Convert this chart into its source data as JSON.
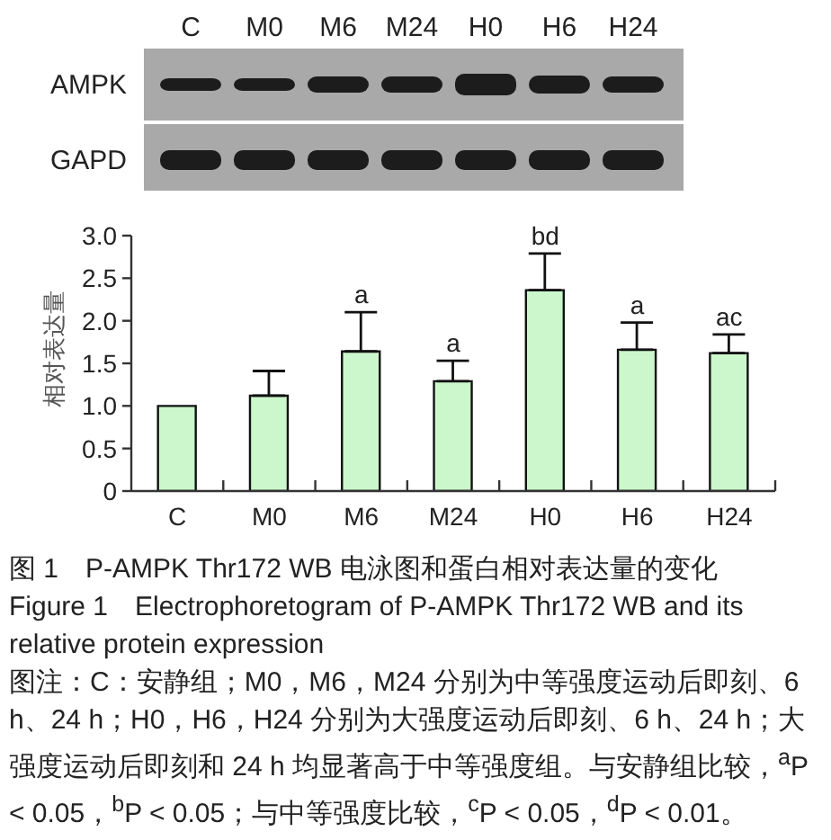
{
  "chart_data": {
    "type": "bar",
    "title": "图 1　P-AMPK Thr172 WB 电泳图和蛋白相对表达量的变化",
    "subtitle": "Figure 1　Electrophoretogram of P-AMPK Thr172 WB and its relative protein expression",
    "ylabel": "相对表达量",
    "categories": [
      "C",
      "M0",
      "M6",
      "M24",
      "H0",
      "H6",
      "H24"
    ],
    "values": [
      1.0,
      1.12,
      1.64,
      1.29,
      2.36,
      1.66,
      1.62
    ],
    "errors": [
      null,
      [
        1.12,
        1.41
      ],
      [
        1.64,
        2.1
      ],
      [
        1.29,
        1.53
      ],
      [
        2.36,
        2.79
      ],
      [
        1.66,
        1.98
      ],
      [
        1.62,
        1.84
      ]
    ],
    "color": "#ccf7cc",
    "ylim": [
      0,
      3
    ],
    "yticks": [
      0,
      0.5,
      {
        "value": 1,
        "label": "1.0"
      },
      1.5,
      {
        "value": 2,
        "label": "2.0"
      },
      2.5,
      {
        "value": 3,
        "label": "3.0"
      }
    ],
    "annotations": [
      "AMPK",
      "GAPD",
      {
        "text": "a",
        "x": "M6",
        "y": 2.1
      },
      {
        "text": "a",
        "x": "M24",
        "y": 1.53
      },
      {
        "text": "bd",
        "x": "H0",
        "y": 2.79
      },
      {
        "text": "a",
        "x": "H6",
        "y": 1.98
      },
      {
        "text": "ac",
        "x": "H24",
        "y": 1.84
      },
      "图注：C：安静组；M0，M6，M24 分别为中等强度运动后即刻、6 h、24 h；H0，H6，H24 分别为大强度运动后即刻、6 h、24 h；大强度运动后即刻和 24 h 均显著高于中等强度组。与安静组比较，$^{a}$P < 0.05，$^{b}$P < 0.05；与中等强度比较，$^{c}$P < 0.05，$^{d}$P < 0.01。"
    ]
  }
}
